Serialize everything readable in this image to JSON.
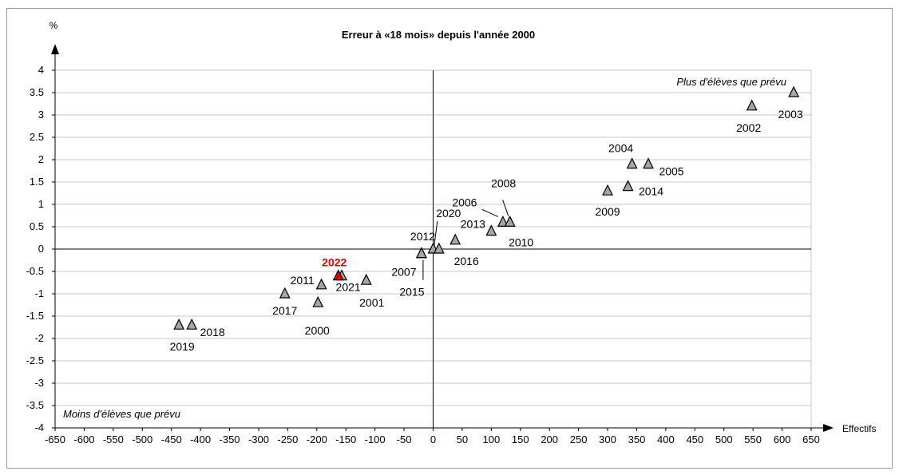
{
  "chart_data": {
    "type": "scatter",
    "title": "Erreur à «18 mois» depuis l'année 2000",
    "xlabel": "Effectifs",
    "ylabel": "%",
    "xlim": [
      -650,
      650
    ],
    "ylim": [
      -4,
      4
    ],
    "x_ticks": [
      -650,
      -600,
      -550,
      -500,
      -450,
      -400,
      -350,
      -300,
      -250,
      -200,
      -150,
      -100,
      -50,
      0,
      50,
      100,
      150,
      200,
      250,
      300,
      350,
      400,
      450,
      500,
      550,
      600,
      650
    ],
    "y_ticks": [
      "4",
      "3.5",
      "3",
      "2.5",
      "2",
      "1.5",
      "1",
      "0.5",
      "0",
      "-0.5",
      "-1",
      "-1.5",
      "-2",
      "-2.5",
      "-3",
      "-3.5",
      "-4"
    ],
    "grid": "horizontal",
    "annotations": {
      "top_right": "Plus d'élèves que prévu",
      "bottom_left": "Moins d'élèves que prévu"
    },
    "marker_color": "#a6a6a6",
    "highlight_color": "#e00000",
    "points": [
      {
        "label": "2000",
        "x": -198,
        "y": -1.2
      },
      {
        "label": "2001",
        "x": -115,
        "y": -0.7
      },
      {
        "label": "2002",
        "x": 548,
        "y": 3.2
      },
      {
        "label": "2003",
        "x": 620,
        "y": 3.5
      },
      {
        "label": "2004",
        "x": 342,
        "y": 1.9
      },
      {
        "label": "2005",
        "x": 370,
        "y": 1.9
      },
      {
        "label": "2006",
        "x": 120,
        "y": 0.6
      },
      {
        "label": "2007",
        "x": -20,
        "y": -0.1
      },
      {
        "label": "2008",
        "x": 132,
        "y": 0.6
      },
      {
        "label": "2009",
        "x": 300,
        "y": 1.3
      },
      {
        "label": "2010",
        "x": 132,
        "y": 0.6
      },
      {
        "label": "2011",
        "x": -192,
        "y": -0.8
      },
      {
        "label": "2012",
        "x": 0,
        "y": 0.0
      },
      {
        "label": "2013",
        "x": 100,
        "y": 0.4
      },
      {
        "label": "2014",
        "x": 335,
        "y": 1.4
      },
      {
        "label": "2015",
        "x": -20,
        "y": -0.1
      },
      {
        "label": "2016",
        "x": 38,
        "y": 0.2
      },
      {
        "label": "2017",
        "x": -255,
        "y": -1.0
      },
      {
        "label": "2018",
        "x": -415,
        "y": -1.7
      },
      {
        "label": "2019",
        "x": -437,
        "y": -1.7
      },
      {
        "label": "2020",
        "x": 10,
        "y": 0.0
      },
      {
        "label": "2021",
        "x": -157,
        "y": -0.6
      },
      {
        "label": "2022",
        "x": -163,
        "y": -0.6,
        "highlight": true
      }
    ]
  }
}
